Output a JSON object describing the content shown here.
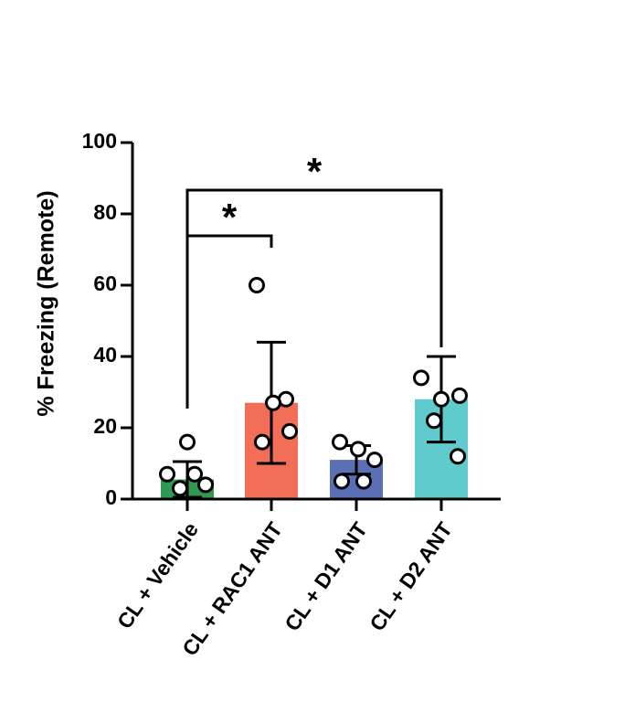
{
  "chart_data": {
    "type": "bar",
    "title": "",
    "xlabel": "",
    "ylabel": "% Freezing (Remote)",
    "ylim": [
      0,
      100
    ],
    "yticks": [
      0,
      20,
      40,
      60,
      80,
      100
    ],
    "categories": [
      "CL + Vehicle",
      "CL + RAC1 ANT",
      "CL + D1 ANT",
      "CL + D2 ANT"
    ],
    "values": [
      5.5,
      27,
      11,
      28
    ],
    "errors": [
      5,
      17,
      4,
      12
    ],
    "colors": [
      "#2e9a52",
      "#f26e57",
      "#5a6fb5",
      "#5fcbcc"
    ],
    "points": [
      [
        16,
        7,
        7,
        4,
        3
      ],
      [
        60,
        28,
        27,
        19,
        16
      ],
      [
        16,
        14,
        11,
        5,
        5
      ],
      [
        34,
        29,
        28,
        22,
        12
      ]
    ],
    "significance": [
      {
        "from": 0,
        "to": 1,
        "label": "*"
      },
      {
        "from": 0,
        "to": 3,
        "label": "*"
      }
    ]
  }
}
